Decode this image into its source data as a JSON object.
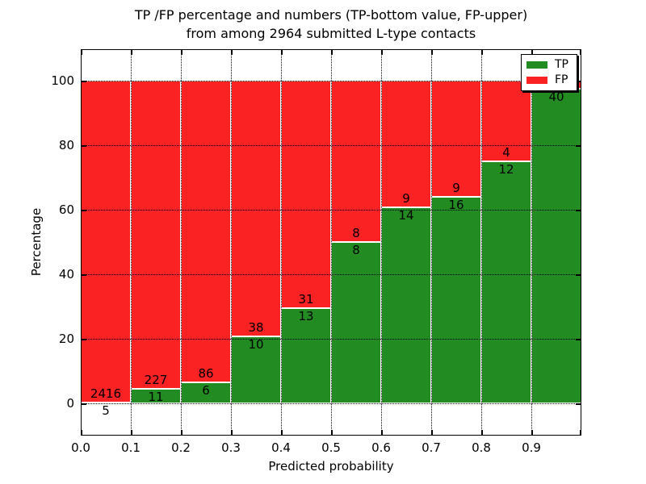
{
  "title": {
    "line1": "TP /FP percentage and numbers (TP-bottom value, FP-upper)",
    "line2": "from among 2964 submitted L-type contacts"
  },
  "chart_data": {
    "type": "bar",
    "stacked": true,
    "title": "TP /FP percentage and numbers (TP-bottom value, FP-upper)\nfrom among 2964 submitted L-type contacts",
    "total_submitted_contacts": 2964,
    "xlabel": "Predicted probability",
    "ylabel": "Percentage",
    "x_tick_labels": [
      "0.0",
      "0.1",
      "0.2",
      "0.3",
      "0.4",
      "0.5",
      "0.6",
      "0.7",
      "0.8",
      "0.9"
    ],
    "y_ticks": [
      0,
      20,
      40,
      60,
      80,
      100
    ],
    "xlim": [
      0.0,
      1.0
    ],
    "ylim": [
      -10,
      110
    ],
    "grid": "dotted both axes",
    "legend": {
      "position": "upper right",
      "entries": [
        {
          "label": "TP",
          "color": "#228B22"
        },
        {
          "label": "FP",
          "color": "#FA2222"
        }
      ]
    },
    "colors": {
      "tp": "#228B22",
      "fp": "#FA2222",
      "bar_edge": "#FFFFFF"
    },
    "bins": [
      {
        "range": "0.0-0.1",
        "tp": 5,
        "fp": 2416,
        "tp_pct": 0.21,
        "tp_label": "5",
        "fp_label": "2416"
      },
      {
        "range": "0.1-0.2",
        "tp": 11,
        "fp": 227,
        "tp_pct": 4.62,
        "tp_label": "11",
        "fp_label": "227"
      },
      {
        "range": "0.2-0.3",
        "tp": 6,
        "fp": 86,
        "tp_pct": 6.52,
        "tp_label": "6",
        "fp_label": "86"
      },
      {
        "range": "0.3-0.4",
        "tp": 10,
        "fp": 38,
        "tp_pct": 20.83,
        "tp_label": "10",
        "fp_label": "38"
      },
      {
        "range": "0.4-0.5",
        "tp": 13,
        "fp": 31,
        "tp_pct": 29.55,
        "tp_label": "13",
        "fp_label": "31"
      },
      {
        "range": "0.5-0.6",
        "tp": 8,
        "fp": 8,
        "tp_pct": 50.0,
        "tp_label": "8",
        "fp_label": "8"
      },
      {
        "range": "0.6-0.7",
        "tp": 14,
        "fp": 9,
        "tp_pct": 60.87,
        "tp_label": "14",
        "fp_label": "9"
      },
      {
        "range": "0.7-0.8",
        "tp": 16,
        "fp": 9,
        "tp_pct": 64.0,
        "tp_label": "16",
        "fp_label": "9"
      },
      {
        "range": "0.8-0.9",
        "tp": 12,
        "fp": 4,
        "tp_pct": 75.0,
        "tp_label": "12",
        "fp_label": "4"
      },
      {
        "range": "0.9-1.0",
        "tp": 40,
        "fp": null,
        "tp_pct": 97.5,
        "tp_label": "40",
        "fp_label": ""
      }
    ]
  }
}
